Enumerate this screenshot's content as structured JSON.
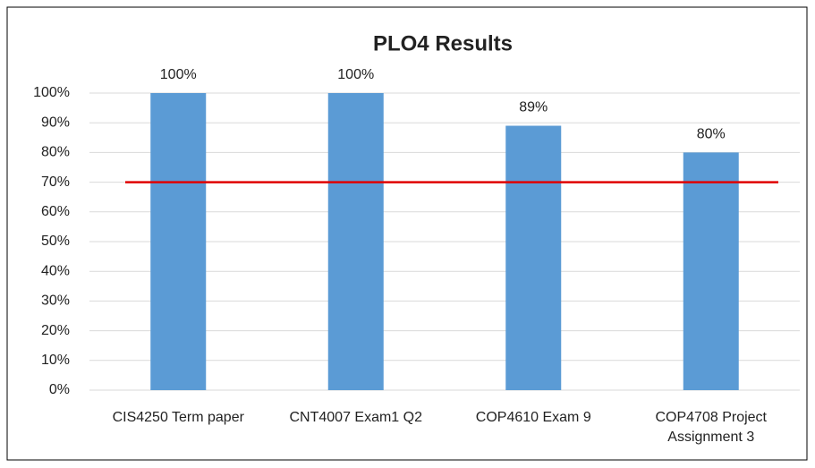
{
  "chart_data": {
    "type": "bar",
    "title": "PLO4 Results",
    "categories": [
      "CIS4250 Term paper",
      "CNT4007 Exam1 Q2",
      "COP4610 Exam 9",
      "COP4708 Project Assignment 3"
    ],
    "values": [
      100,
      100,
      89,
      80
    ],
    "value_labels": [
      "100%",
      "100%",
      "89%",
      "80%"
    ],
    "color": "#5b9bd5",
    "target": {
      "value": 70,
      "color": "#e00000"
    },
    "ylim": [
      0,
      100
    ],
    "yticks": [
      {
        "value": 0,
        "label": "0%"
      },
      {
        "value": 10,
        "label": "10%"
      },
      {
        "value": 20,
        "label": "20%"
      },
      {
        "value": 30,
        "label": "30%"
      },
      {
        "value": 40,
        "label": "40%"
      },
      {
        "value": 50,
        "label": "50%"
      },
      {
        "value": 60,
        "label": "60%"
      },
      {
        "value": 70,
        "label": "70%"
      },
      {
        "value": 80,
        "label": "80%"
      },
      {
        "value": 90,
        "label": "90%"
      },
      {
        "value": 100,
        "label": "100%"
      }
    ],
    "grid": true
  }
}
